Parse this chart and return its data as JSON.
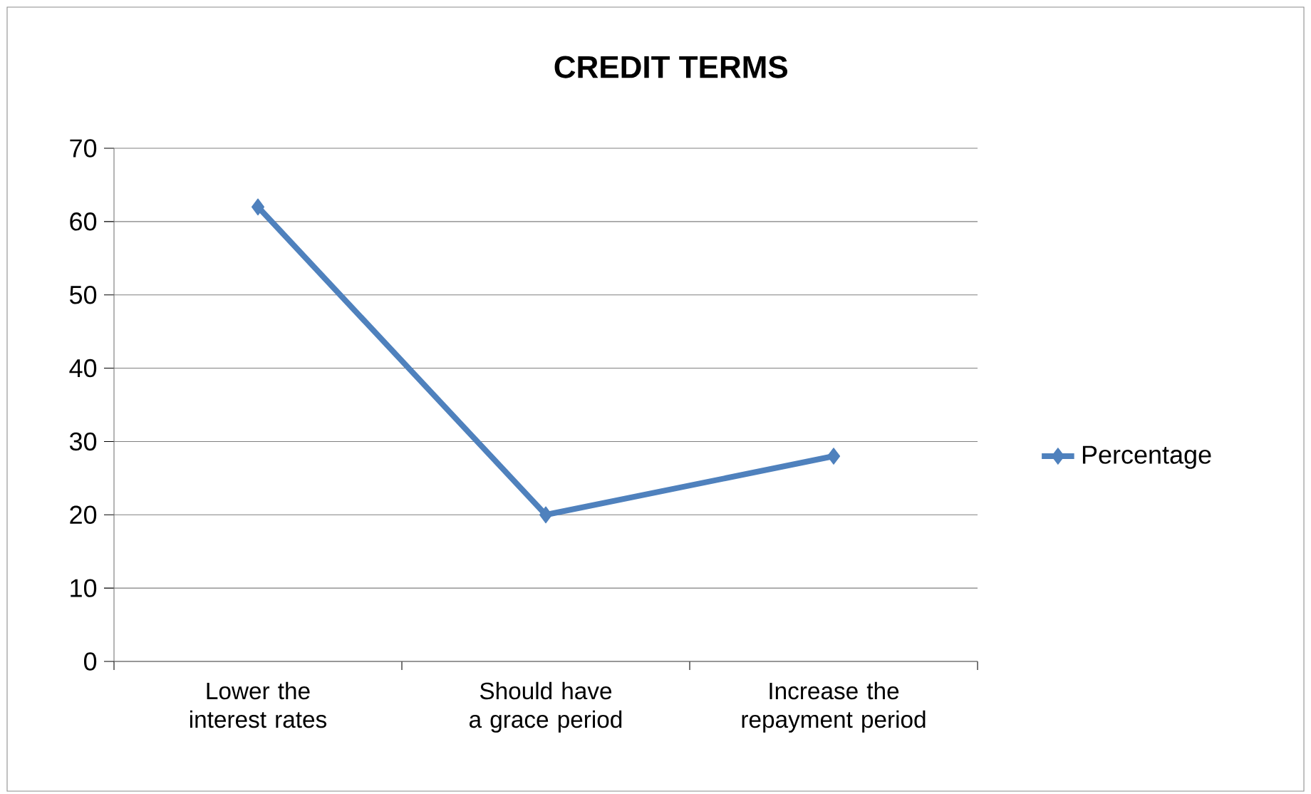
{
  "chart_data": {
    "type": "line",
    "title": "CREDIT TERMS",
    "categories": [
      "Lower the interest rates",
      "Should have a grace period",
      "Increase the repayment period"
    ],
    "series": [
      {
        "name": "Percentage",
        "color": "#4f81bd",
        "values": [
          62,
          20,
          28
        ]
      }
    ],
    "ylim": [
      0,
      70
    ],
    "yticks": [
      0,
      10,
      20,
      30,
      40,
      50,
      60,
      70
    ],
    "grid": "y",
    "legend": "right",
    "marker": "diamond",
    "line_style": "solid"
  }
}
